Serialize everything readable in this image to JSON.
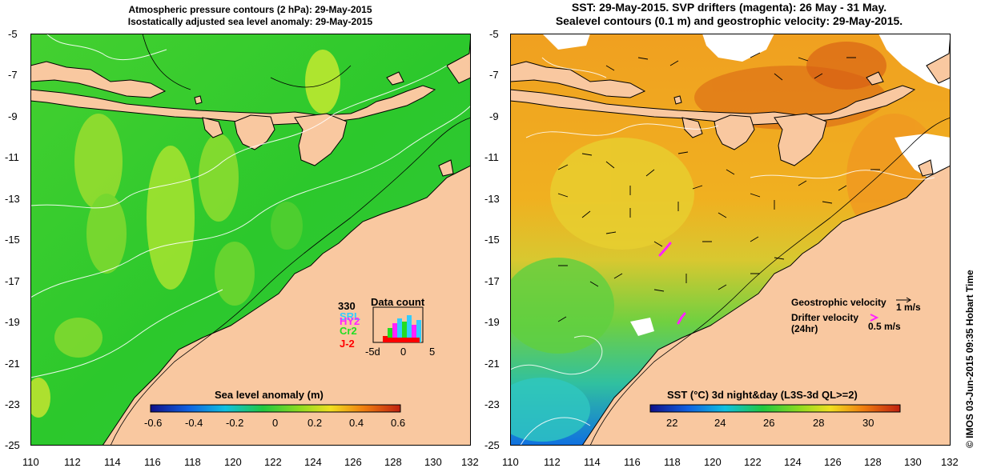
{
  "left_panel": {
    "title_line1": "Atmospheric pressure contours (2 hPa): 29-May-2015",
    "title_line2": "Isostatically adjusted sea level anomaly: 29-May-2015",
    "colorbar": {
      "label": "Sea level anomaly (m)",
      "ticks": [
        "-0.6",
        "-0.4",
        "-0.2",
        "0",
        "0.2",
        "0.4",
        "0.6"
      ]
    },
    "data_count": {
      "title": "Data count",
      "max_label": "330",
      "satellites": [
        {
          "name": "SRL",
          "color": "#33ccff"
        },
        {
          "name": "HY2",
          "color": "#ff22ff"
        },
        {
          "name": "Cr2",
          "color": "#22dd22"
        },
        {
          "name": "J-2",
          "color": "#ff0000"
        }
      ],
      "x_ticks": [
        "-5d",
        "0",
        "5"
      ]
    }
  },
  "right_panel": {
    "title_line1": "SST: 29-May-2015. SVP drifters (magenta): 26 May - 31 May.",
    "title_line2": "Sealevel contours (0.1 m) and geostrophic velocity: 29-May-2015.",
    "geostrophic_label": "Geostrophic velocity",
    "geostrophic_scale": "1 m/s",
    "drifter_label_line1": "Drifter velocity",
    "drifter_label_line2": "(24hr)",
    "drifter_scale": "0.5 m/s",
    "colorbar": {
      "label": "SST (°C) 3d night&day (L3S-3d QL>=2)",
      "ticks": [
        "22",
        "24",
        "26",
        "28",
        "30"
      ]
    }
  },
  "axes": {
    "x_ticks": [
      "110",
      "112",
      "114",
      "116",
      "118",
      "120",
      "122",
      "124",
      "126",
      "128",
      "130",
      "132"
    ],
    "y_ticks": [
      "-5",
      "-7",
      "-9",
      "-11",
      "-13",
      "-15",
      "-17",
      "-19",
      "-21",
      "-23",
      "-25"
    ]
  },
  "credit": "© IMOS 03-Jun-2015 09:35 Hobart Time",
  "colors": {
    "land": "#f9c8a0",
    "sla_base": "#2ecc2e",
    "sst_base": "#f0a020",
    "drifter": "#ff22ff"
  }
}
